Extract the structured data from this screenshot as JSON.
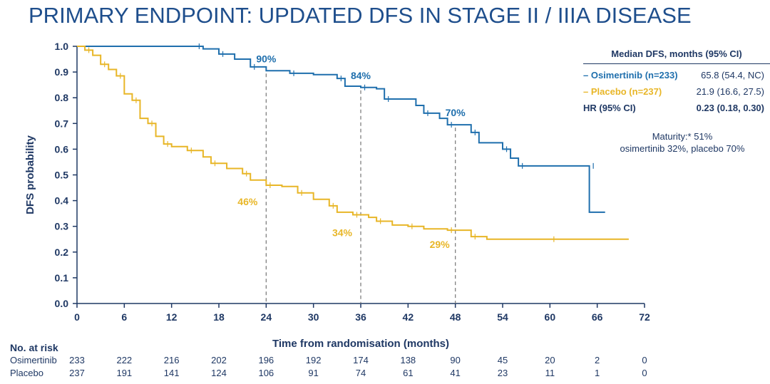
{
  "title": "PRIMARY ENDPOINT: UPDATED DFS IN STAGE II / IIIA DISEASE",
  "colors": {
    "osimertinib": "#1f6fad",
    "placebo": "#e8b627",
    "text": "#1f3864",
    "title": "#1e4e8c"
  },
  "chart_data": {
    "type": "line",
    "xlabel": "Time from randomisation (months)",
    "ylabel": "DFS probability",
    "xlim": [
      0,
      72
    ],
    "ylim": [
      0,
      1
    ],
    "xticks": [
      "0",
      "6",
      "12",
      "18",
      "24",
      "30",
      "36",
      "42",
      "48",
      "54",
      "60",
      "66",
      "72"
    ],
    "yticks": [
      "0.0",
      "0.1",
      "0.2",
      "0.3",
      "0.4",
      "0.5",
      "0.6",
      "0.7",
      "0.8",
      "0.9",
      "1.0"
    ],
    "series": [
      {
        "name": "Osimertinib",
        "points": [
          [
            0,
            1.0
          ],
          [
            15,
            1.0
          ],
          [
            16,
            0.99
          ],
          [
            18,
            0.97
          ],
          [
            20,
            0.95
          ],
          [
            22,
            0.92
          ],
          [
            24,
            0.905
          ],
          [
            27,
            0.895
          ],
          [
            30,
            0.89
          ],
          [
            33,
            0.875
          ],
          [
            34,
            0.845
          ],
          [
            36,
            0.84
          ],
          [
            38,
            0.835
          ],
          [
            39,
            0.795
          ],
          [
            43,
            0.77
          ],
          [
            44,
            0.74
          ],
          [
            46,
            0.72
          ],
          [
            47,
            0.695
          ],
          [
            49,
            0.695
          ],
          [
            50,
            0.665
          ],
          [
            51,
            0.625
          ],
          [
            54,
            0.6
          ],
          [
            55,
            0.565
          ],
          [
            56,
            0.535
          ],
          [
            60,
            0.535
          ],
          [
            65,
            0.535
          ],
          [
            65,
            0.355
          ],
          [
            67,
            0.355
          ]
        ]
      },
      {
        "name": "Placebo",
        "points": [
          [
            0,
            1.0
          ],
          [
            1,
            0.985
          ],
          [
            2,
            0.965
          ],
          [
            3,
            0.93
          ],
          [
            4,
            0.91
          ],
          [
            5,
            0.885
          ],
          [
            6,
            0.815
          ],
          [
            7,
            0.79
          ],
          [
            8,
            0.72
          ],
          [
            9,
            0.7
          ],
          [
            10,
            0.65
          ],
          [
            11,
            0.62
          ],
          [
            12,
            0.61
          ],
          [
            14,
            0.595
          ],
          [
            16,
            0.57
          ],
          [
            17,
            0.545
          ],
          [
            19,
            0.525
          ],
          [
            21,
            0.505
          ],
          [
            22,
            0.48
          ],
          [
            24,
            0.46
          ],
          [
            26,
            0.455
          ],
          [
            28,
            0.43
          ],
          [
            30,
            0.405
          ],
          [
            32,
            0.38
          ],
          [
            33,
            0.355
          ],
          [
            35,
            0.345
          ],
          [
            37,
            0.335
          ],
          [
            38,
            0.32
          ],
          [
            40,
            0.305
          ],
          [
            42,
            0.3
          ],
          [
            44,
            0.29
          ],
          [
            47,
            0.285
          ],
          [
            49,
            0.285
          ],
          [
            50,
            0.26
          ],
          [
            52,
            0.25
          ],
          [
            60,
            0.25
          ],
          [
            70,
            0.25
          ]
        ]
      }
    ],
    "annotations": [
      {
        "text": "90%",
        "x": 24,
        "y": 0.905,
        "series": "Osimertinib"
      },
      {
        "text": "84%",
        "x": 36,
        "y": 0.84,
        "series": "Osimertinib"
      },
      {
        "text": "70%",
        "x": 48,
        "y": 0.695,
        "series": "Osimertinib"
      },
      {
        "text": "46%",
        "x": 24,
        "y": 0.46,
        "series": "Placebo"
      },
      {
        "text": "34%",
        "x": 36,
        "y": 0.34,
        "series": "Placebo"
      },
      {
        "text": "29%",
        "x": 48,
        "y": 0.285,
        "series": "Placebo"
      }
    ],
    "reference_lines_x": [
      24,
      36,
      48
    ]
  },
  "legend": {
    "header": "Median DFS, months (95% CI)",
    "rows": [
      {
        "name": "– Osimertinib (n=233)",
        "value": "65.8 (54.4, NC)"
      },
      {
        "name": "– Placebo (n=237)",
        "value": "21.9 (16.6, 27.5)"
      },
      {
        "name": "HR (95% CI)",
        "value": "0.23 (0.18, 0.30)"
      }
    ],
    "maturity_line1": "Maturity:* 51%",
    "maturity_line2": "osimertinib 32%, placebo 70%"
  },
  "risk_table": {
    "title": "No. at risk",
    "rows": [
      {
        "name": "Osimertinib",
        "values": [
          "233",
          "222",
          "216",
          "202",
          "196",
          "192",
          "174",
          "138",
          "90",
          "45",
          "20",
          "2",
          "0"
        ]
      },
      {
        "name": "Placebo",
        "values": [
          "237",
          "191",
          "141",
          "124",
          "106",
          "91",
          "74",
          "61",
          "41",
          "23",
          "11",
          "1",
          "0"
        ]
      }
    ]
  }
}
